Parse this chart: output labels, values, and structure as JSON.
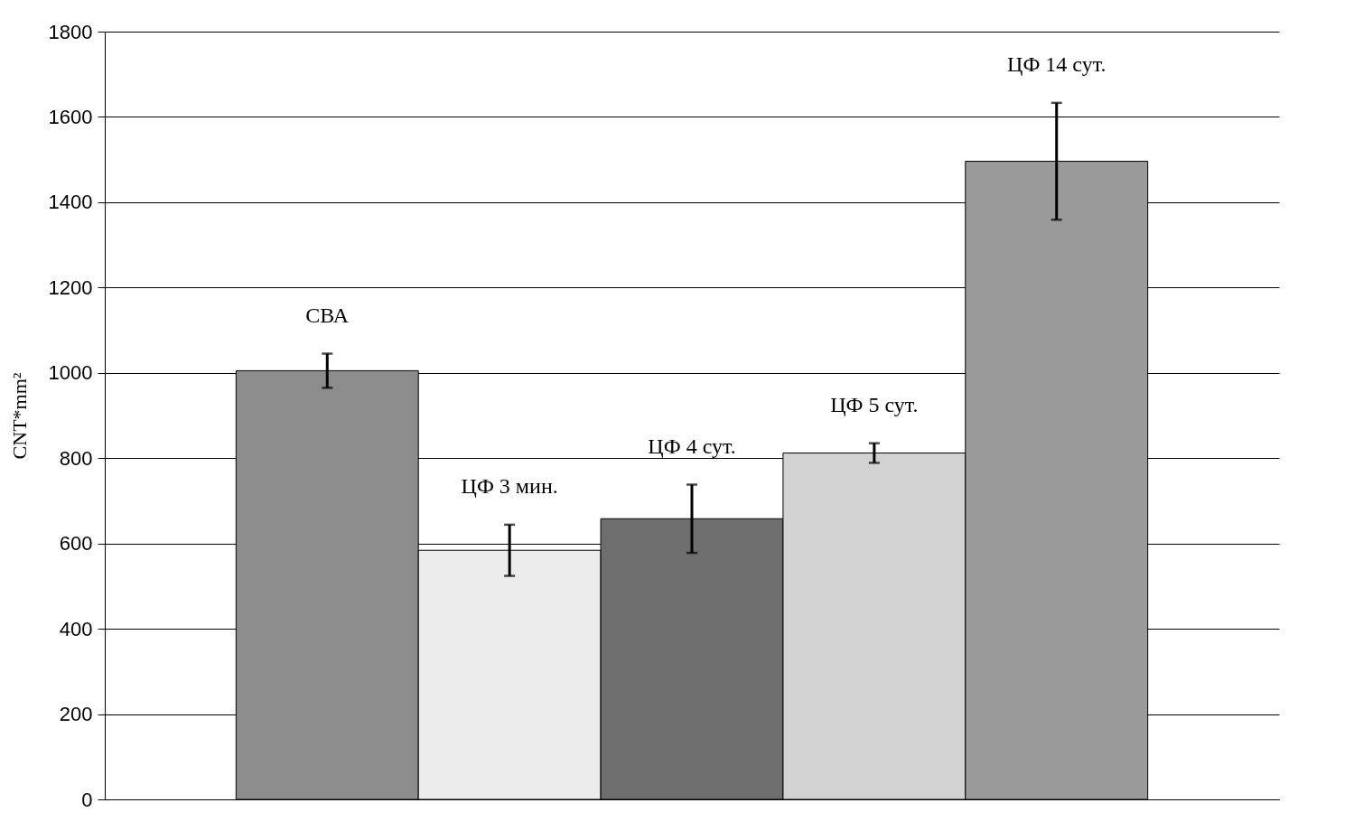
{
  "chart_data": {
    "type": "bar",
    "ylabel": "CNT*mm²",
    "categories": [
      "СВА",
      "ЦФ 3 мин.",
      "ЦФ 4 сут.",
      "ЦФ 5 сут.",
      "ЦФ 14 сут."
    ],
    "values": [
      1005,
      584,
      658,
      812,
      1496
    ],
    "errors": [
      40,
      60,
      80,
      23,
      137
    ],
    "colors": [
      "#8c8c8c",
      "#ececec",
      "#6e6e6e",
      "#d2d2d2",
      "#9a9a9a"
    ],
    "ylim": [
      0,
      1800
    ],
    "yticks": [
      0,
      200,
      400,
      600,
      800,
      1000,
      1200,
      1400,
      1600,
      1800
    ],
    "grid": "y",
    "tick_labels": "y"
  }
}
